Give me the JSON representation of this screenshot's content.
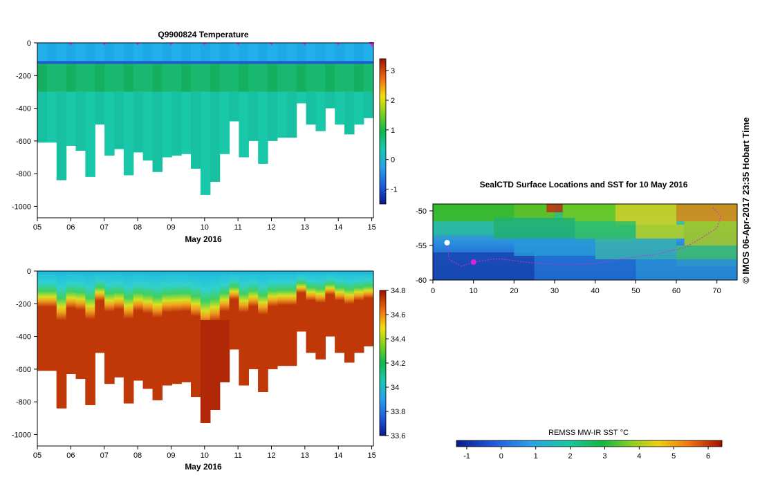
{
  "chart_data": [
    {
      "id": "temperature-section",
      "type": "heatmap",
      "title": "Q9900824  Temperature",
      "xlabel": "May 2016",
      "ylabel": "",
      "x_ticks": [
        "05",
        "06",
        "07",
        "08",
        "09",
        "10",
        "11",
        "12",
        "13",
        "14",
        "15"
      ],
      "y_ticks": [
        "0",
        "-200",
        "-400",
        "-600",
        "-800",
        "-1000"
      ],
      "xlim": [
        5,
        15.05
      ],
      "ylim": [
        -1070,
        0
      ],
      "profile_marker_days": [
        6,
        7,
        8,
        9,
        10,
        11,
        12,
        13,
        14,
        15
      ],
      "marker_color": "#e020e0",
      "colorbar": {
        "ticks": [
          "3",
          "2",
          "1",
          "0",
          "-1"
        ],
        "min": -1.5,
        "max": 3.4
      },
      "profiles": {
        "start": 5.0,
        "width": 0.4,
        "depths": [
          -610,
          -610,
          -840,
          -630,
          -660,
          -820,
          -500,
          -690,
          -650,
          -810,
          -670,
          -720,
          -790,
          -700,
          -690,
          -680,
          -770,
          -930,
          -850,
          -680,
          -480,
          -700,
          -600,
          -740,
          -600,
          -580,
          -580,
          -370,
          -500,
          -540,
          -400,
          -500,
          -560,
          -500,
          -460
        ],
        "thermocline_depth": -120
      }
    },
    {
      "id": "salinity-section",
      "type": "heatmap",
      "title": "",
      "xlabel": "May 2016",
      "ylabel": "",
      "x_ticks": [
        "05",
        "06",
        "07",
        "08",
        "09",
        "10",
        "11",
        "12",
        "13",
        "14",
        "15"
      ],
      "y_ticks": [
        "0",
        "-200",
        "-400",
        "-600",
        "-800",
        "-1000"
      ],
      "xlim": [
        5,
        15.05
      ],
      "ylim": [
        -1070,
        0
      ],
      "colorbar": {
        "ticks": [
          "34.8",
          "34.6",
          "34.4",
          "34.2",
          "34",
          "33.8",
          "33.6"
        ],
        "min": 33.6,
        "max": 34.8
      }
    },
    {
      "id": "sst-map",
      "type": "heatmap",
      "title": "SealCTD Surface Locations and SST for 10 May 2016",
      "xlabel": "",
      "ylabel": "",
      "x_ticks": [
        "0",
        "10",
        "20",
        "30",
        "40",
        "50",
        "60",
        "70"
      ],
      "y_ticks": [
        "-50",
        "-55",
        "-60"
      ],
      "xlim": [
        0,
        75
      ],
      "ylim": [
        -60,
        -49
      ],
      "colorbar": {
        "label": "REMSS MW-IR SST °C",
        "ticks": [
          "-1",
          "0",
          "1",
          "2",
          "3",
          "4",
          "5",
          "6"
        ],
        "min": -1.3,
        "max": 6.4
      },
      "track_color": "#e020e0",
      "current_position": {
        "lon": 10,
        "lat": -57.4
      },
      "start_position": {
        "lon": 3.5,
        "lat": -54.6
      }
    }
  ],
  "credit": "© IMOS 06-Apr-2017 23:35 Hobart Time"
}
